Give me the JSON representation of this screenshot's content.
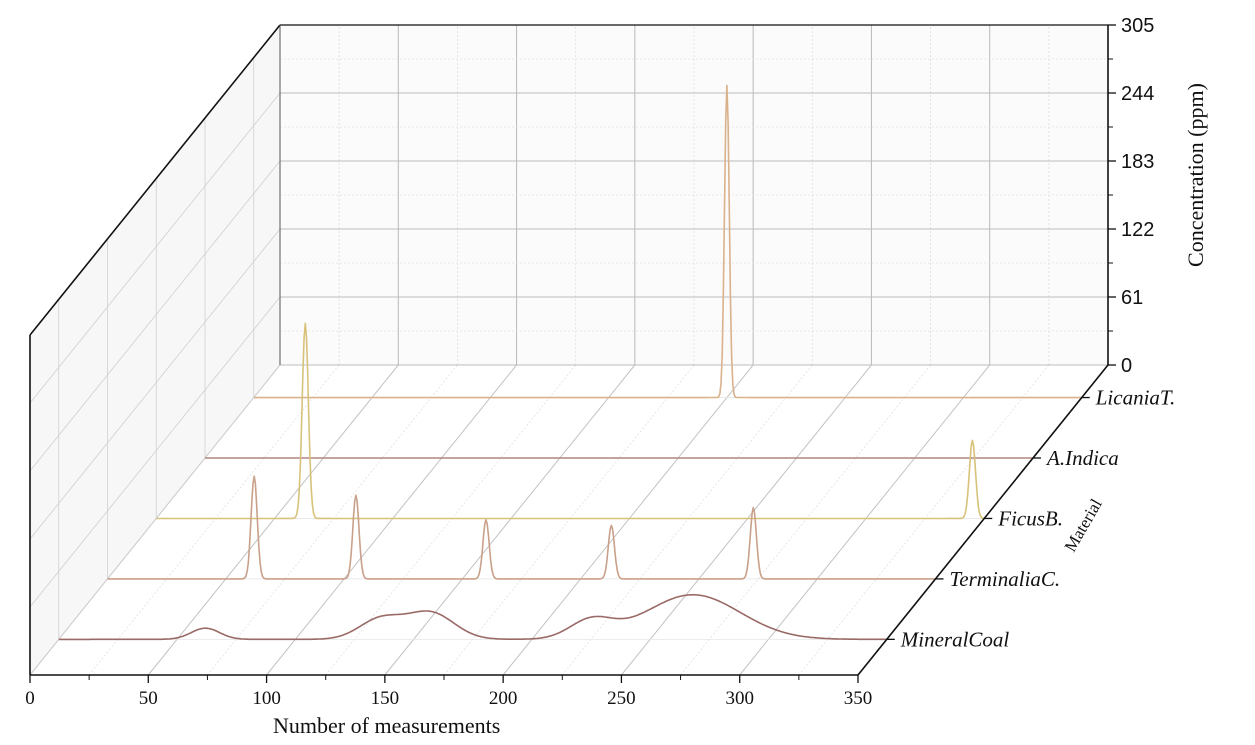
{
  "chart_data": {
    "type": "3d-waterfall-line",
    "title": "",
    "xlabel": "Number of measurements",
    "ylabel": "Material",
    "zlabel": "Concentration (ppm)",
    "x_ticks": [
      "0",
      "50",
      "100",
      "150",
      "200",
      "250",
      "300",
      "350"
    ],
    "xlim": [
      0,
      350
    ],
    "z_ticks": [
      "0",
      "61",
      "122",
      "183",
      "244",
      "305"
    ],
    "zlim": [
      0,
      305
    ],
    "categories": [
      "MineralCoal",
      "TerminaliaC.",
      "FicusB.",
      "A.Indica",
      "LicaniaT."
    ],
    "series": [
      {
        "name": "MineralCoal",
        "color": "#9a6a66",
        "peaks": [
          {
            "x": 62,
            "height": 10,
            "width": 6,
            "shape": "bump"
          },
          {
            "x": 136,
            "height": 18,
            "width": 9,
            "shape": "bump"
          },
          {
            "x": 157,
            "height": 24,
            "width": 10,
            "shape": "bump"
          },
          {
            "x": 225,
            "height": 16,
            "width": 9,
            "shape": "bump"
          },
          {
            "x": 268,
            "height": 40,
            "width": 20,
            "shape": "bump"
          }
        ]
      },
      {
        "name": "TerminaliaC.",
        "color": "#c9a08a",
        "peaks": [
          {
            "x": 62,
            "height": 92,
            "width": 1.3,
            "shape": "spike"
          },
          {
            "x": 105,
            "height": 75,
            "width": 1.3,
            "shape": "spike"
          },
          {
            "x": 160,
            "height": 53,
            "width": 1.3,
            "shape": "spike"
          },
          {
            "x": 213,
            "height": 48,
            "width": 1.3,
            "shape": "spike"
          },
          {
            "x": 273,
            "height": 64,
            "width": 1.3,
            "shape": "spike"
          }
        ]
      },
      {
        "name": "FicusB.",
        "color": "#d8c27a",
        "peaks": [
          {
            "x": 63,
            "height": 175,
            "width": 1.3,
            "shape": "spike"
          },
          {
            "x": 345,
            "height": 70,
            "width": 1.3,
            "shape": "spike"
          }
        ]
      },
      {
        "name": "A.Indica",
        "color": "#b08680",
        "peaks": []
      },
      {
        "name": "LicaniaT.",
        "color": "#d9b28c",
        "peaks": [
          {
            "x": 200,
            "height": 280,
            "width": 1.0,
            "shape": "spike"
          }
        ]
      }
    ],
    "grid": true
  }
}
